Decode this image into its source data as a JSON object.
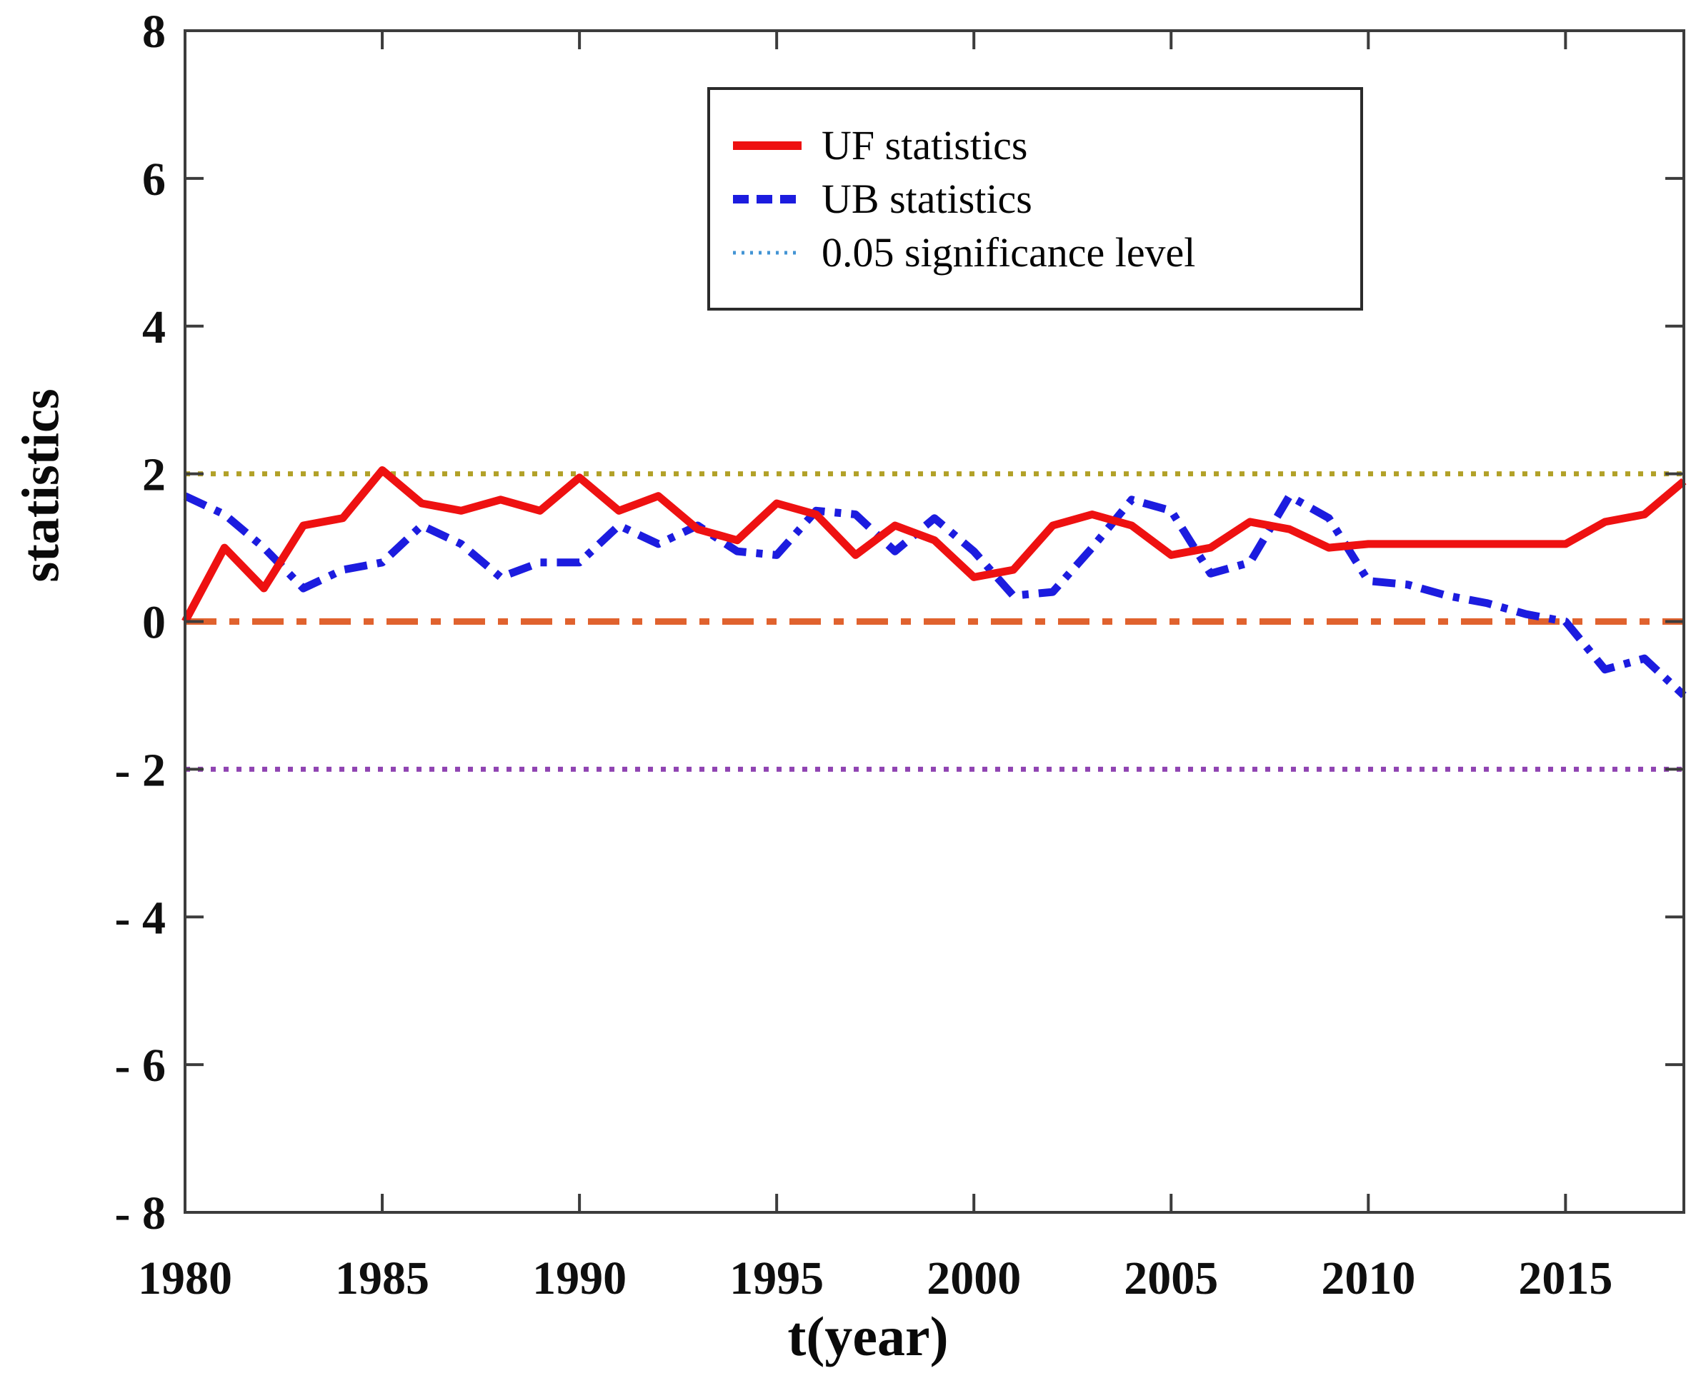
{
  "figure": {
    "background": "#ffffff",
    "frame_color": "#3c3c3c",
    "text_color": "#0f0f0f"
  },
  "chart_data": {
    "type": "line",
    "title": "",
    "xlabel": "t(year)",
    "ylabel": "statistics",
    "xlim": [
      1980,
      2018
    ],
    "ylim": [
      -8,
      8
    ],
    "grid": false,
    "legend_position": "top-center",
    "x_ticks": [
      1980,
      1985,
      1990,
      1995,
      2000,
      2005,
      2010,
      2015
    ],
    "x_tick_labels": [
      "1980",
      "1985",
      "1990",
      "1995",
      "2000",
      "2005",
      "2010",
      "2015"
    ],
    "y_ticks": [
      8,
      6,
      4,
      2,
      0,
      -2,
      -4,
      -6,
      -8
    ],
    "y_tick_labels": [
      "8",
      "6",
      "4",
      "2",
      "0",
      "- 2",
      "- 4",
      "- 6",
      "- 8"
    ],
    "x": [
      1980,
      1981,
      1982,
      1983,
      1984,
      1985,
      1986,
      1987,
      1988,
      1989,
      1990,
      1991,
      1992,
      1993,
      1994,
      1995,
      1996,
      1997,
      1998,
      1999,
      2000,
      2001,
      2002,
      2003,
      2004,
      2005,
      2006,
      2007,
      2008,
      2009,
      2010,
      2011,
      2012,
      2013,
      2014,
      2015,
      2016,
      2017,
      2018
    ],
    "series": [
      {
        "name": "UF statistics",
        "color": "#ee1111",
        "style": "solid",
        "width": 11,
        "values": [
          0.0,
          1.0,
          0.45,
          1.3,
          1.4,
          2.05,
          1.6,
          1.5,
          1.65,
          1.5,
          1.95,
          1.5,
          1.7,
          1.25,
          1.1,
          1.6,
          1.45,
          0.9,
          1.3,
          1.1,
          0.6,
          0.7,
          1.3,
          1.45,
          1.3,
          0.9,
          1.0,
          1.35,
          1.25,
          1.0,
          1.05,
          1.05,
          1.05,
          1.05,
          1.05,
          1.05,
          1.35,
          1.45,
          1.9
        ]
      },
      {
        "name": "UB statistics",
        "color": "#1c1cdf",
        "style": "dashdot",
        "width": 11,
        "values": [
          1.7,
          1.45,
          1.0,
          0.45,
          0.7,
          0.8,
          1.3,
          1.05,
          0.6,
          0.8,
          0.8,
          1.3,
          1.05,
          1.3,
          0.95,
          0.9,
          1.5,
          1.45,
          0.95,
          1.4,
          0.95,
          0.35,
          0.4,
          1.0,
          1.65,
          1.5,
          0.65,
          0.8,
          1.7,
          1.4,
          0.55,
          0.5,
          0.35,
          0.25,
          0.1,
          0.0,
          -0.65,
          -0.5,
          -1.0
        ]
      }
    ],
    "reference_lines": [
      {
        "y": 2,
        "color": "#b2a128",
        "style": "dotted",
        "width": 7,
        "meaning": "0.05 significance level (upper)"
      },
      {
        "y": 0,
        "color": "#e0622e",
        "style": "dashdot",
        "width": 9,
        "meaning": "zero line"
      },
      {
        "y": -2,
        "color": "#9044b2",
        "style": "dotted",
        "width": 7,
        "meaning": "0.05 significance level (lower)"
      }
    ],
    "legend": {
      "entries": [
        {
          "label": "UF statistics",
          "color": "#ee1111",
          "style": "solid",
          "weight": 12
        },
        {
          "label": "UB statistics",
          "color": "#1c1cdf",
          "style": "dashed",
          "weight": 12
        },
        {
          "label": "0.05 significance level",
          "color": "#4394d4",
          "style": "dotted",
          "weight": 5
        }
      ]
    }
  }
}
